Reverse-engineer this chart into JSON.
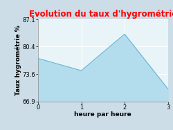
{
  "title": "Evolution du taux d'hygrométrie",
  "title_color": "#ff0000",
  "xlabel": "heure par heure",
  "ylabel": "Taux hygrométrie %",
  "x": [
    0,
    1,
    2,
    3
  ],
  "y": [
    77.5,
    74.5,
    83.5,
    70.0
  ],
  "ylim": [
    66.9,
    87.1
  ],
  "xlim": [
    0,
    3
  ],
  "yticks": [
    66.9,
    73.6,
    80.4,
    87.1
  ],
  "xticks": [
    0,
    1,
    2,
    3
  ],
  "fill_color": "#b3dded",
  "line_color": "#6ab8d4",
  "figure_bg": "#ccdde8",
  "axes_bg": "#e8f4f8",
  "grid_color": "#ffffff",
  "title_fontsize": 8.5,
  "label_fontsize": 6.5,
  "tick_fontsize": 6
}
